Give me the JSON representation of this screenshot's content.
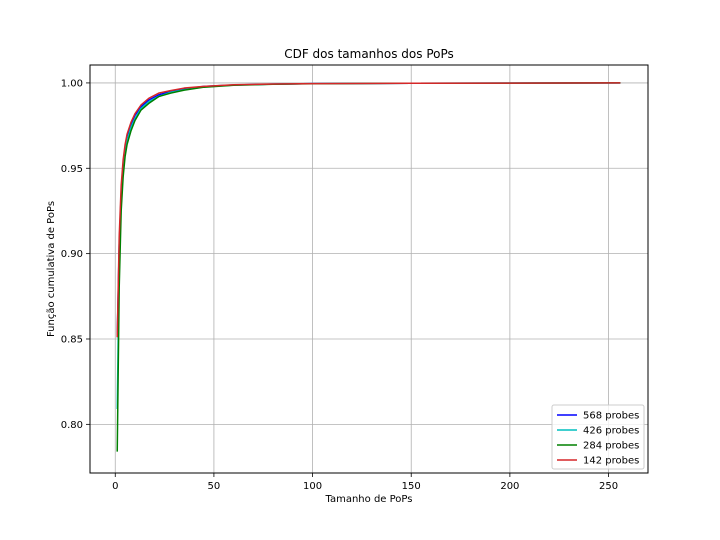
{
  "chart_data": {
    "type": "line",
    "title": "CDF dos tamanhos dos PoPs",
    "xlabel": "Tamanho de PoPs",
    "ylabel": "Função cumulativa de PoPs",
    "xlim": [
      -12.8,
      270
    ],
    "ylim": [
      0.7715,
      1.0105
    ],
    "xticks": [
      0,
      50,
      100,
      150,
      200,
      250
    ],
    "yticks": [
      0.8,
      0.85,
      0.9,
      0.95,
      1.0
    ],
    "xtick_labels": [
      "0",
      "50",
      "100",
      "150",
      "200",
      "250"
    ],
    "ytick_labels": [
      "0.80",
      "0.85",
      "0.90",
      "0.95",
      "1.00"
    ],
    "grid": true,
    "legend_position": "lower right",
    "series": [
      {
        "name": "568 probes",
        "color": "#0000ff",
        "x": [
          1,
          2,
          3,
          4,
          5,
          6,
          8,
          10,
          13,
          17,
          22,
          28,
          35,
          45,
          60,
          80,
          100,
          150,
          200,
          256
        ],
        "y": [
          0.851,
          0.905,
          0.935,
          0.952,
          0.962,
          0.969,
          0.976,
          0.981,
          0.986,
          0.99,
          0.993,
          0.995,
          0.9965,
          0.998,
          0.9988,
          0.9993,
          0.9996,
          0.9998,
          0.9999,
          1.0
        ]
      },
      {
        "name": "426 probes",
        "color": "#00bfbf",
        "x": [
          1,
          2,
          3,
          4,
          5,
          6,
          8,
          10,
          13,
          17,
          22,
          28,
          35,
          45,
          60,
          80,
          100,
          150,
          200,
          256
        ],
        "y": [
          0.809,
          0.895,
          0.93,
          0.948,
          0.959,
          0.966,
          0.974,
          0.979,
          0.985,
          0.989,
          0.992,
          0.9945,
          0.996,
          0.9977,
          0.9987,
          0.9993,
          0.9996,
          0.9998,
          0.9999,
          1.0
        ]
      },
      {
        "name": "284 probes",
        "color": "#008000",
        "x": [
          1,
          2,
          3,
          4,
          5,
          6,
          8,
          10,
          13,
          17,
          22,
          28,
          35,
          45,
          60,
          80,
          100,
          150,
          200,
          256
        ],
        "y": [
          0.784,
          0.88,
          0.925,
          0.945,
          0.957,
          0.964,
          0.972,
          0.978,
          0.984,
          0.988,
          0.992,
          0.994,
          0.9958,
          0.9975,
          0.9986,
          0.9992,
          0.9995,
          0.9998,
          0.9999,
          1.0
        ]
      },
      {
        "name": "142 probes",
        "color": "#d62728",
        "x": [
          1,
          2,
          3,
          4,
          5,
          6,
          8,
          10,
          13,
          17,
          22,
          28,
          35,
          45,
          60,
          80,
          100,
          150,
          200,
          256
        ],
        "y": [
          0.851,
          0.91,
          0.94,
          0.955,
          0.964,
          0.97,
          0.977,
          0.982,
          0.987,
          0.991,
          0.994,
          0.9955,
          0.997,
          0.998,
          0.9989,
          0.9994,
          0.9996,
          0.9998,
          0.9999,
          1.0
        ]
      }
    ]
  }
}
